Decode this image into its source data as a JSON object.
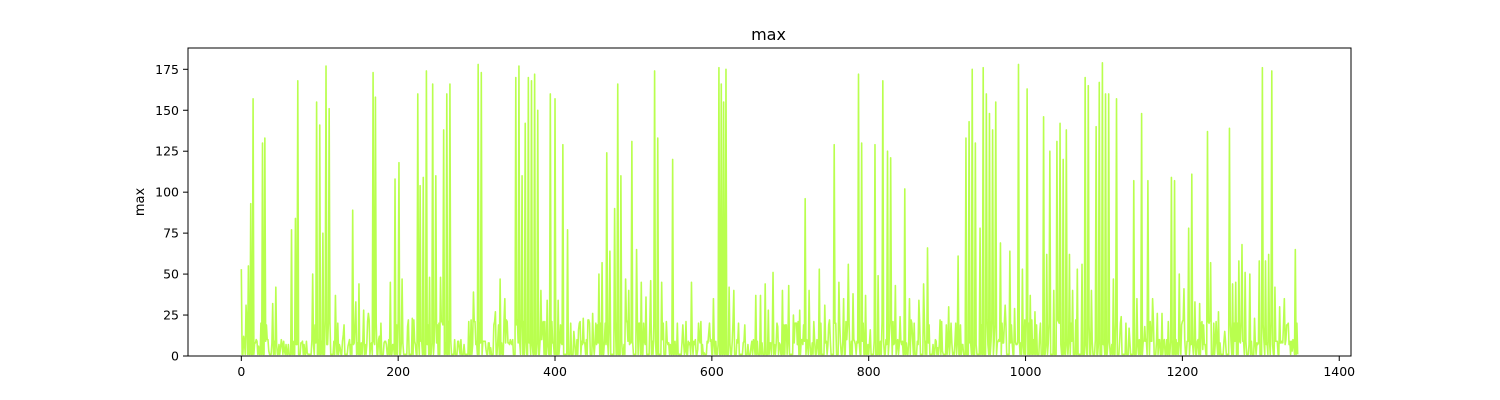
{
  "chart_data": {
    "type": "line",
    "title": "max",
    "xlabel": "",
    "ylabel": "max",
    "xlim": [
      -68,
      1415
    ],
    "ylim": [
      0,
      188
    ],
    "xticks": [
      0,
      200,
      400,
      600,
      800,
      1000,
      1200,
      1400
    ],
    "xtick_labels": [
      "0",
      "200",
      "400",
      "600",
      "800",
      "1000",
      "1200",
      "1400"
    ],
    "yticks": [
      0,
      25,
      50,
      75,
      100,
      125,
      150,
      175
    ],
    "ytick_labels": [
      "0",
      "25",
      "50",
      "75",
      "100",
      "125",
      "150",
      "175"
    ],
    "grid": false,
    "legend": "none",
    "color": "#adff2f",
    "n_points": 1348,
    "series": [
      {
        "x_range": [
          0,
          1347
        ],
        "baseline": 1,
        "spikes": [
          [
            0,
            53
          ],
          [
            3,
            12
          ],
          [
            6,
            31
          ],
          [
            9,
            55
          ],
          [
            12,
            93
          ],
          [
            15,
            157
          ],
          [
            18,
            8
          ],
          [
            22,
            6
          ],
          [
            27,
            130
          ],
          [
            30,
            133
          ],
          [
            35,
            3
          ],
          [
            40,
            32
          ],
          [
            44,
            42
          ],
          [
            50,
            5
          ],
          [
            55,
            3
          ],
          [
            64,
            77
          ],
          [
            69,
            84
          ],
          [
            72,
            168
          ],
          [
            78,
            9
          ],
          [
            84,
            2
          ],
          [
            91,
            50
          ],
          [
            96,
            155
          ],
          [
            100,
            141
          ],
          [
            104,
            75
          ],
          [
            108,
            177
          ],
          [
            112,
            151
          ],
          [
            120,
            37
          ],
          [
            126,
            5
          ],
          [
            130,
            13
          ],
          [
            136,
            6
          ],
          [
            142,
            89
          ],
          [
            146,
            33
          ],
          [
            150,
            44
          ],
          [
            156,
            28
          ],
          [
            162,
            26
          ],
          [
            168,
            173
          ],
          [
            171,
            158
          ],
          [
            176,
            12
          ],
          [
            182,
            8
          ],
          [
            190,
            45
          ],
          [
            196,
            108
          ],
          [
            201,
            118
          ],
          [
            205,
            47
          ],
          [
            212,
            18
          ],
          [
            218,
            23
          ],
          [
            225,
            160
          ],
          [
            228,
            104
          ],
          [
            232,
            109
          ],
          [
            236,
            174
          ],
          [
            240,
            48
          ],
          [
            244,
            166
          ],
          [
            248,
            110
          ],
          [
            254,
            48
          ],
          [
            258,
            138
          ],
          [
            262,
            160
          ],
          [
            266,
            166
          ],
          [
            272,
            10
          ],
          [
            278,
            4
          ],
          [
            290,
            21
          ],
          [
            296,
            39
          ],
          [
            302,
            178
          ],
          [
            306,
            173
          ],
          [
            312,
            4
          ],
          [
            318,
            5
          ],
          [
            324,
            27
          ],
          [
            330,
            47
          ],
          [
            336,
            35
          ],
          [
            345,
            7
          ],
          [
            350,
            170
          ],
          [
            354,
            177
          ],
          [
            358,
            110
          ],
          [
            362,
            142
          ],
          [
            366,
            170
          ],
          [
            370,
            168
          ],
          [
            374,
            172
          ],
          [
            378,
            150
          ],
          [
            382,
            40
          ],
          [
            390,
            34
          ],
          [
            394,
            160
          ],
          [
            400,
            157
          ],
          [
            404,
            34
          ],
          [
            410,
            129
          ],
          [
            416,
            77
          ],
          [
            424,
            15
          ],
          [
            430,
            16
          ],
          [
            436,
            23
          ],
          [
            442,
            22
          ],
          [
            448,
            26
          ],
          [
            456,
            50
          ],
          [
            460,
            57
          ],
          [
            466,
            124
          ],
          [
            470,
            64
          ],
          [
            476,
            90
          ],
          [
            480,
            166
          ],
          [
            484,
            110
          ],
          [
            490,
            47
          ],
          [
            494,
            40
          ],
          [
            498,
            131
          ],
          [
            504,
            65
          ],
          [
            510,
            45
          ],
          [
            516,
            36
          ],
          [
            522,
            46
          ],
          [
            527,
            174
          ],
          [
            531,
            133
          ],
          [
            536,
            45
          ],
          [
            542,
            21
          ],
          [
            550,
            120
          ],
          [
            556,
            20
          ],
          [
            566,
            3
          ],
          [
            574,
            45
          ],
          [
            582,
            4
          ],
          [
            590,
            2
          ],
          [
            596,
            14
          ],
          [
            602,
            35
          ],
          [
            609,
            176
          ],
          [
            612,
            166
          ],
          [
            615,
            155
          ],
          [
            618,
            175
          ],
          [
            622,
            42
          ],
          [
            628,
            40
          ],
          [
            634,
            20
          ],
          [
            642,
            19
          ],
          [
            650,
            6
          ],
          [
            656,
            37
          ],
          [
            662,
            37
          ],
          [
            668,
            44
          ],
          [
            672,
            28
          ],
          [
            678,
            51
          ],
          [
            684,
            18
          ],
          [
            690,
            40
          ],
          [
            698,
            43
          ],
          [
            704,
            25
          ],
          [
            712,
            28
          ],
          [
            719,
            96
          ],
          [
            724,
            40
          ],
          [
            730,
            21
          ],
          [
            737,
            53
          ],
          [
            744,
            31
          ],
          [
            750,
            22
          ],
          [
            756,
            129
          ],
          [
            762,
            45
          ],
          [
            768,
            35
          ],
          [
            774,
            56
          ],
          [
            780,
            38
          ],
          [
            787,
            172
          ],
          [
            791,
            130
          ],
          [
            796,
            37
          ],
          [
            802,
            16
          ],
          [
            808,
            129
          ],
          [
            812,
            49
          ],
          [
            818,
            168
          ],
          [
            824,
            125
          ],
          [
            828,
            121
          ],
          [
            834,
            43
          ],
          [
            840,
            24
          ],
          [
            846,
            102
          ],
          [
            852,
            35
          ],
          [
            858,
            20
          ],
          [
            864,
            34
          ],
          [
            870,
            44
          ],
          [
            875,
            66
          ],
          [
            882,
            7
          ],
          [
            888,
            5
          ],
          [
            894,
            3
          ],
          [
            902,
            30
          ],
          [
            908,
            2
          ],
          [
            914,
            61
          ],
          [
            920,
            7
          ],
          [
            924,
            133
          ],
          [
            928,
            143
          ],
          [
            932,
            175
          ],
          [
            936,
            130
          ],
          [
            942,
            78
          ],
          [
            946,
            176
          ],
          [
            950,
            160
          ],
          [
            954,
            148
          ],
          [
            958,
            138
          ],
          [
            962,
            155
          ],
          [
            968,
            69
          ],
          [
            974,
            31
          ],
          [
            980,
            64
          ],
          [
            986,
            29
          ],
          [
            991,
            178
          ],
          [
            996,
            53
          ],
          [
            1002,
            163
          ],
          [
            1006,
            37
          ],
          [
            1012,
            27
          ],
          [
            1018,
            13
          ],
          [
            1023,
            146
          ],
          [
            1027,
            62
          ],
          [
            1031,
            125
          ],
          [
            1036,
            40
          ],
          [
            1040,
            131
          ],
          [
            1044,
            142
          ],
          [
            1048,
            120
          ],
          [
            1052,
            138
          ],
          [
            1056,
            62
          ],
          [
            1060,
            40
          ],
          [
            1066,
            53
          ],
          [
            1072,
            56
          ],
          [
            1076,
            170
          ],
          [
            1080,
            165
          ],
          [
            1084,
            40
          ],
          [
            1090,
            140
          ],
          [
            1094,
            167
          ],
          [
            1098,
            179
          ],
          [
            1102,
            160
          ],
          [
            1106,
            160
          ],
          [
            1112,
            47
          ],
          [
            1116,
            157
          ],
          [
            1122,
            24
          ],
          [
            1128,
            20
          ],
          [
            1132,
            17
          ],
          [
            1138,
            107
          ],
          [
            1142,
            35
          ],
          [
            1148,
            148
          ],
          [
            1152,
            18
          ],
          [
            1156,
            107
          ],
          [
            1162,
            35
          ],
          [
            1168,
            26
          ],
          [
            1174,
            26
          ],
          [
            1180,
            10
          ],
          [
            1186,
            109
          ],
          [
            1190,
            107
          ],
          [
            1196,
            50
          ],
          [
            1202,
            41
          ],
          [
            1208,
            78
          ],
          [
            1212,
            111
          ],
          [
            1216,
            33
          ],
          [
            1222,
            32
          ],
          [
            1226,
            4
          ],
          [
            1232,
            137
          ],
          [
            1236,
            57
          ],
          [
            1242,
            8
          ],
          [
            1246,
            27
          ],
          [
            1254,
            15
          ],
          [
            1260,
            139
          ],
          [
            1264,
            44
          ],
          [
            1268,
            45
          ],
          [
            1272,
            58
          ],
          [
            1276,
            68
          ],
          [
            1280,
            51
          ],
          [
            1286,
            50
          ],
          [
            1292,
            23
          ],
          [
            1298,
            58
          ],
          [
            1302,
            176
          ],
          [
            1306,
            58
          ],
          [
            1310,
            62
          ],
          [
            1314,
            174
          ],
          [
            1318,
            42
          ],
          [
            1324,
            30
          ],
          [
            1330,
            35
          ],
          [
            1336,
            7
          ],
          [
            1340,
            3
          ],
          [
            1344,
            65
          ]
        ]
      }
    ]
  }
}
